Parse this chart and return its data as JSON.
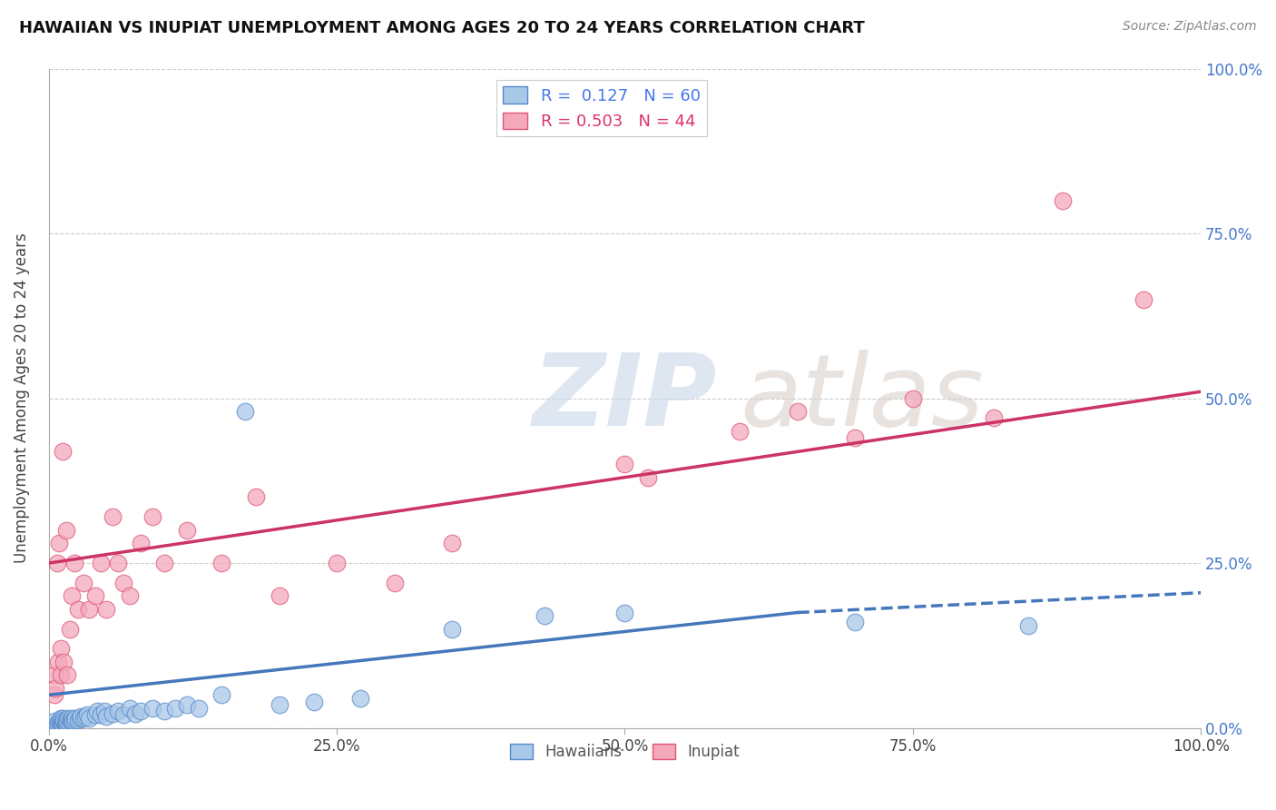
{
  "title": "HAWAIIAN VS INUPIAT UNEMPLOYMENT AMONG AGES 20 TO 24 YEARS CORRELATION CHART",
  "source": "Source: ZipAtlas.com",
  "ylabel": "Unemployment Among Ages 20 to 24 years",
  "xlim": [
    0,
    1
  ],
  "ylim": [
    0,
    1
  ],
  "xticks": [
    0.0,
    0.25,
    0.5,
    0.75,
    1.0
  ],
  "xticklabels": [
    "0.0%",
    "25.0%",
    "50.0%",
    "75.0%",
    "100.0%"
  ],
  "ytick_positions": [
    0.0,
    0.25,
    0.5,
    0.75,
    1.0
  ],
  "ytick_labels_right": [
    "0.0%",
    "25.0%",
    "50.0%",
    "75.0%",
    "100.0%"
  ],
  "hawaiian_color": "#a8c8e8",
  "inupiat_color": "#f4a8bc",
  "hawaiian_edge": "#5588cc",
  "inupiat_edge": "#dd5575",
  "trend_hawaiian_color": "#4477bb",
  "trend_inupiat_color": "#cc3366",
  "r_hawaiian": 0.127,
  "n_hawaiian": 60,
  "r_inupiat": 0.503,
  "n_inupiat": 44,
  "background_color": "#ffffff",
  "hawaiian_x": [
    0.005,
    0.005,
    0.007,
    0.008,
    0.009,
    0.01,
    0.01,
    0.01,
    0.01,
    0.01,
    0.011,
    0.012,
    0.012,
    0.013,
    0.013,
    0.014,
    0.015,
    0.015,
    0.016,
    0.017,
    0.018,
    0.019,
    0.02,
    0.02,
    0.021,
    0.022,
    0.023,
    0.025,
    0.027,
    0.028,
    0.03,
    0.032,
    0.033,
    0.035,
    0.04,
    0.042,
    0.045,
    0.048,
    0.05,
    0.055,
    0.06,
    0.065,
    0.07,
    0.075,
    0.08,
    0.09,
    0.1,
    0.11,
    0.12,
    0.13,
    0.15,
    0.17,
    0.2,
    0.23,
    0.27,
    0.35,
    0.43,
    0.5,
    0.7,
    0.85
  ],
  "hawaiian_y": [
    0.005,
    0.01,
    0.005,
    0.008,
    0.01,
    0.005,
    0.008,
    0.01,
    0.012,
    0.015,
    0.008,
    0.01,
    0.015,
    0.01,
    0.012,
    0.01,
    0.008,
    0.012,
    0.01,
    0.015,
    0.012,
    0.01,
    0.012,
    0.015,
    0.01,
    0.012,
    0.015,
    0.012,
    0.015,
    0.018,
    0.015,
    0.018,
    0.02,
    0.015,
    0.02,
    0.025,
    0.02,
    0.025,
    0.018,
    0.022,
    0.025,
    0.02,
    0.03,
    0.022,
    0.025,
    0.03,
    0.025,
    0.03,
    0.035,
    0.03,
    0.05,
    0.48,
    0.035,
    0.04,
    0.045,
    0.15,
    0.17,
    0.175,
    0.16,
    0.155
  ],
  "inupiat_x": [
    0.005,
    0.005,
    0.006,
    0.007,
    0.008,
    0.009,
    0.01,
    0.01,
    0.012,
    0.013,
    0.015,
    0.016,
    0.018,
    0.02,
    0.022,
    0.025,
    0.03,
    0.035,
    0.04,
    0.045,
    0.05,
    0.055,
    0.06,
    0.065,
    0.07,
    0.08,
    0.09,
    0.1,
    0.12,
    0.15,
    0.18,
    0.2,
    0.25,
    0.3,
    0.35,
    0.5,
    0.52,
    0.6,
    0.65,
    0.7,
    0.75,
    0.82,
    0.88,
    0.95
  ],
  "inupiat_y": [
    0.05,
    0.08,
    0.06,
    0.25,
    0.1,
    0.28,
    0.12,
    0.08,
    0.42,
    0.1,
    0.3,
    0.08,
    0.15,
    0.2,
    0.25,
    0.18,
    0.22,
    0.18,
    0.2,
    0.25,
    0.18,
    0.32,
    0.25,
    0.22,
    0.2,
    0.28,
    0.32,
    0.25,
    0.3,
    0.25,
    0.35,
    0.2,
    0.25,
    0.22,
    0.28,
    0.4,
    0.38,
    0.45,
    0.48,
    0.44,
    0.5,
    0.47,
    0.8,
    0.65
  ],
  "trend_h_x0": 0.0,
  "trend_h_x1": 0.65,
  "trend_h_y0": 0.05,
  "trend_h_y1": 0.175,
  "trend_h_dash_x0": 0.65,
  "trend_h_dash_x1": 1.0,
  "trend_h_dash_y0": 0.175,
  "trend_h_dash_y1": 0.205,
  "trend_i_x0": 0.0,
  "trend_i_x1": 1.0,
  "trend_i_y0": 0.25,
  "trend_i_y1": 0.51
}
